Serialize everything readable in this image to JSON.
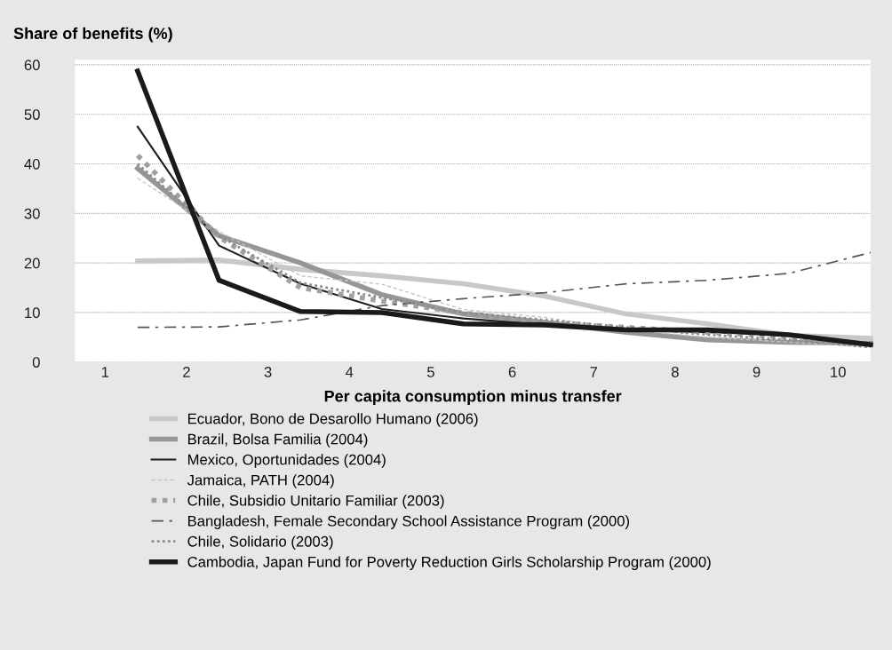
{
  "chart_data": {
    "type": "line",
    "ylabel": "Share of benefits (%)",
    "xlabel": "Per capita consumption minus transfer",
    "x": [
      1.4,
      2.4,
      3.4,
      4.4,
      5.4,
      6.4,
      7.4,
      8.4,
      9.4,
      10.4
    ],
    "xlim": [
      0.63,
      10.4
    ],
    "xticks": [
      1,
      2,
      3,
      4,
      5,
      6,
      7,
      8,
      9,
      10
    ],
    "ylim": [
      0,
      61
    ],
    "yticks": [
      0,
      10,
      20,
      30,
      40,
      50,
      60
    ],
    "grid": "y",
    "legend": "bottom",
    "marker": "none",
    "series": [
      {
        "name": "Ecuador, Bono de Desarollo Humano (2006)",
        "color": "#c8c8c8",
        "line_style": "solid",
        "values": [
          20.4,
          20.6,
          18.7,
          17.4,
          15.8,
          13.3,
          9.7,
          7.7,
          5.4,
          4.8
        ]
      },
      {
        "name": "Brazil, Bolsa Familia (2004)",
        "color": "#969696",
        "line_style": "solid",
        "values": [
          39.1,
          25.5,
          20.0,
          13.6,
          9.7,
          8.0,
          6.0,
          4.5,
          4.0,
          3.8
        ]
      },
      {
        "name": "Mexico, Oportunidades (2004)",
        "color": "#231f20",
        "line_style": "solid",
        "values": [
          47.5,
          23.5,
          15.8,
          10.7,
          8.8,
          7.5,
          6.5,
          6.0,
          5.5,
          3.5
        ]
      },
      {
        "name": "Jamaica, PATH (2004)",
        "color": "#c4c4c4",
        "line_style": "dashed",
        "values": [
          37.1,
          26.4,
          17.4,
          15.7,
          10.6,
          9.0,
          6.5,
          5.0,
          4.0,
          3.0
        ]
      },
      {
        "name": "Chile, Subsidio Unitario Familiar (2003)",
        "color": "#a0a0a0",
        "line_style": "dotted",
        "values": [
          41.7,
          25.2,
          15.0,
          12.3,
          9.9,
          8.0,
          7.0,
          6.0,
          5.0,
          3.5
        ]
      },
      {
        "name": "Bangladesh, Female Secondary School Assistance Program (2000)",
        "color": "#555555",
        "line_style": "dashdot",
        "values": [
          7.0,
          7.1,
          8.5,
          11.4,
          12.8,
          14.0,
          15.8,
          16.5,
          17.9,
          22.1
        ]
      },
      {
        "name": "Chile, Solidario (2003)",
        "color": "#8c8c8c",
        "line_style": "dotted",
        "values": [
          40.0,
          25.5,
          16.0,
          13.0,
          10.0,
          8.5,
          7.0,
          5.5,
          4.5,
          3.0
        ]
      },
      {
        "name": "Cambodia, Japan Fund for Poverty Reduction Girls Scholarship Program (2000)",
        "color": "#1a1a1a",
        "line_style": "solid",
        "values": [
          58.7,
          16.5,
          10.2,
          10.0,
          7.7,
          7.5,
          6.5,
          6.5,
          5.5,
          3.5
        ]
      }
    ]
  }
}
